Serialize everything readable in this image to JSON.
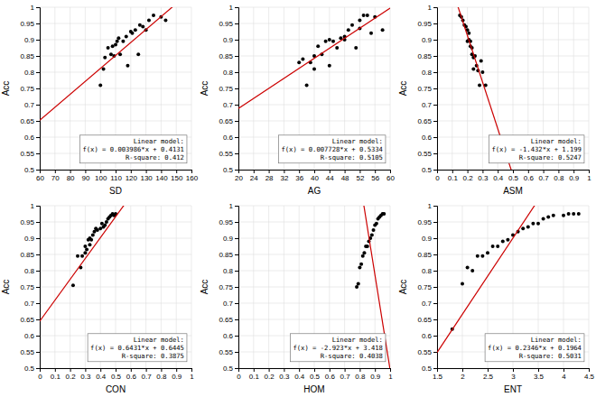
{
  "chart_data": [
    {
      "type": "scatter",
      "xlabel": "SD",
      "ylabel": "Acc",
      "xlim": [
        60,
        160
      ],
      "ylim": [
        0.5,
        1
      ],
      "xticks": [
        60,
        70,
        80,
        90,
        100,
        110,
        120,
        130,
        140,
        150,
        160
      ],
      "yticks": [
        0.5,
        0.55,
        0.6,
        0.65,
        0.7,
        0.75,
        0.8,
        0.85,
        0.9,
        0.95,
        1
      ],
      "grid": true,
      "series": [
        {
          "type": "scatter",
          "color": "#000000",
          "x": [
            100,
            102,
            103,
            105,
            107,
            108,
            109,
            110,
            111,
            112,
            113,
            115,
            117,
            118,
            120,
            121,
            123,
            125,
            126,
            128,
            130,
            132,
            135,
            140,
            143
          ],
          "values": [
            0.76,
            0.81,
            0.845,
            0.875,
            0.855,
            0.88,
            0.85,
            0.885,
            0.895,
            0.905,
            0.855,
            0.895,
            0.91,
            0.82,
            0.925,
            0.92,
            0.93,
            0.855,
            0.945,
            0.94,
            0.93,
            0.96,
            0.975,
            0.97,
            0.96
          ]
        },
        {
          "type": "line",
          "color": "#cc0000",
          "slope": 0.003986,
          "intercept": 0.4131
        }
      ],
      "annotations": [
        "Linear model:",
        "f(x) = 0.003986*x + 0.4131",
        "R-square: 0.412"
      ]
    },
    {
      "type": "scatter",
      "xlabel": "AG",
      "ylabel": "Acc",
      "xlim": [
        20,
        60
      ],
      "ylim": [
        0.5,
        1
      ],
      "xticks": [
        20,
        24,
        28,
        32,
        36,
        40,
        44,
        48,
        52,
        56,
        60
      ],
      "yticks": [
        0.5,
        0.55,
        0.6,
        0.65,
        0.7,
        0.75,
        0.8,
        0.85,
        0.9,
        0.95,
        1
      ],
      "grid": true,
      "series": [
        {
          "type": "scatter",
          "color": "#000000",
          "x": [
            36,
            37,
            38,
            39,
            40,
            40,
            41,
            42,
            43,
            44,
            44,
            45,
            46,
            47,
            48,
            48,
            49,
            50,
            51,
            52,
            52,
            53,
            54,
            55,
            56,
            58
          ],
          "values": [
            0.83,
            0.84,
            0.76,
            0.83,
            0.85,
            0.81,
            0.88,
            0.855,
            0.895,
            0.82,
            0.9,
            0.895,
            0.875,
            0.905,
            0.91,
            0.9,
            0.93,
            0.945,
            0.875,
            0.96,
            0.935,
            0.975,
            0.975,
            0.92,
            0.97,
            0.93
          ]
        },
        {
          "type": "line",
          "color": "#cc0000",
          "slope": 0.007728,
          "intercept": 0.5334
        }
      ],
      "annotations": [
        "Linear model:",
        "f(x) = 0.007728*x + 0.5334",
        "R-square: 0.5105"
      ]
    },
    {
      "type": "scatter",
      "xlabel": "ASM",
      "ylabel": "Acc",
      "xlim": [
        0,
        1
      ],
      "ylim": [
        0.5,
        1
      ],
      "xticks": [
        0,
        0.1,
        0.2,
        0.3,
        0.4,
        0.5,
        0.6,
        0.7,
        0.8,
        0.9,
        1
      ],
      "yticks": [
        0.5,
        0.55,
        0.6,
        0.65,
        0.7,
        0.75,
        0.8,
        0.85,
        0.9,
        0.95,
        1
      ],
      "grid": true,
      "series": [
        {
          "type": "scatter",
          "color": "#000000",
          "x": [
            0.15,
            0.16,
            0.17,
            0.18,
            0.19,
            0.2,
            0.2,
            0.21,
            0.21,
            0.22,
            0.22,
            0.23,
            0.23,
            0.24,
            0.24,
            0.25,
            0.26,
            0.27,
            0.28,
            0.29,
            0.3,
            0.32
          ],
          "values": [
            0.975,
            0.97,
            0.96,
            0.945,
            0.94,
            0.93,
            0.895,
            0.92,
            0.9,
            0.895,
            0.88,
            0.875,
            0.855,
            0.845,
            0.81,
            0.85,
            0.82,
            0.805,
            0.76,
            0.835,
            0.8,
            0.76
          ]
        },
        {
          "type": "line",
          "color": "#cc0000",
          "slope": -1.432,
          "intercept": 1.199
        }
      ],
      "annotations": [
        "Linear model:",
        "f(x) = -1.432*x + 1.199",
        "R-square: 0.5247"
      ]
    },
    {
      "type": "scatter",
      "xlabel": "CON",
      "ylabel": "Acc",
      "xlim": [
        0,
        1
      ],
      "ylim": [
        0.5,
        1
      ],
      "xticks": [
        0,
        0.1,
        0.2,
        0.3,
        0.4,
        0.5,
        0.6,
        0.7,
        0.8,
        0.9,
        1
      ],
      "yticks": [
        0.5,
        0.55,
        0.6,
        0.65,
        0.7,
        0.75,
        0.8,
        0.85,
        0.9,
        0.95,
        1
      ],
      "grid": true,
      "series": [
        {
          "type": "scatter",
          "color": "#000000",
          "x": [
            0.22,
            0.25,
            0.27,
            0.28,
            0.3,
            0.3,
            0.31,
            0.32,
            0.33,
            0.33,
            0.34,
            0.35,
            0.36,
            0.37,
            0.38,
            0.4,
            0.41,
            0.42,
            0.43,
            0.44,
            0.45,
            0.46,
            0.47,
            0.48,
            0.49,
            0.5
          ],
          "values": [
            0.755,
            0.845,
            0.81,
            0.845,
            0.855,
            0.875,
            0.865,
            0.895,
            0.88,
            0.9,
            0.895,
            0.91,
            0.92,
            0.93,
            0.925,
            0.93,
            0.945,
            0.935,
            0.94,
            0.95,
            0.96,
            0.965,
            0.97,
            0.975,
            0.97,
            0.975
          ]
        },
        {
          "type": "line",
          "color": "#cc0000",
          "slope": 0.6431,
          "intercept": 0.6445
        }
      ],
      "annotations": [
        "Linear model:",
        "f(x) = 0.6431*x + 0.6445",
        "R-square: 0.3875"
      ]
    },
    {
      "type": "scatter",
      "xlabel": "HOM",
      "ylabel": "Acc",
      "xlim": [
        0,
        1
      ],
      "ylim": [
        0.5,
        1
      ],
      "xticks": [
        0,
        0.1,
        0.2,
        0.3,
        0.4,
        0.5,
        0.6,
        0.7,
        0.8,
        0.9,
        1
      ],
      "yticks": [
        0.5,
        0.55,
        0.6,
        0.65,
        0.7,
        0.75,
        0.8,
        0.85,
        0.9,
        0.95,
        1
      ],
      "grid": true,
      "series": [
        {
          "type": "scatter",
          "color": "#000000",
          "x": [
            0.78,
            0.79,
            0.8,
            0.81,
            0.82,
            0.83,
            0.84,
            0.85,
            0.86,
            0.87,
            0.88,
            0.89,
            0.9,
            0.91,
            0.92,
            0.93,
            0.94,
            0.95,
            0.96
          ],
          "values": [
            0.75,
            0.76,
            0.81,
            0.82,
            0.845,
            0.855,
            0.875,
            0.875,
            0.89,
            0.9,
            0.91,
            0.925,
            0.94,
            0.945,
            0.96,
            0.965,
            0.97,
            0.975,
            0.975
          ]
        },
        {
          "type": "line",
          "color": "#cc0000",
          "slope": -2.923,
          "intercept": 3.418
        }
      ],
      "annotations": [
        "Linear model:",
        "f(x) = -2.923*x + 3.418",
        "R-square: 0.4038"
      ]
    },
    {
      "type": "scatter",
      "xlabel": "ENT",
      "ylabel": "Acc",
      "xlim": [
        1.5,
        4.5
      ],
      "ylim": [
        0.5,
        1
      ],
      "xticks": [
        1.5,
        2,
        2.5,
        3,
        3.5,
        4,
        4.5
      ],
      "yticks": [
        0.5,
        0.55,
        0.6,
        0.65,
        0.7,
        0.75,
        0.8,
        0.85,
        0.9,
        0.95,
        1
      ],
      "grid": true,
      "series": [
        {
          "type": "scatter",
          "color": "#000000",
          "x": [
            1.8,
            2.0,
            2.1,
            2.2,
            2.3,
            2.4,
            2.5,
            2.6,
            2.7,
            2.8,
            2.9,
            3.0,
            3.1,
            3.2,
            3.3,
            3.4,
            3.5,
            3.6,
            3.7,
            3.8,
            4.0,
            4.1,
            4.2,
            4.3
          ],
          "values": [
            0.62,
            0.76,
            0.81,
            0.8,
            0.845,
            0.845,
            0.855,
            0.875,
            0.875,
            0.89,
            0.895,
            0.91,
            0.92,
            0.93,
            0.935,
            0.945,
            0.945,
            0.96,
            0.965,
            0.97,
            0.97,
            0.975,
            0.975,
            0.975
          ]
        },
        {
          "type": "line",
          "color": "#cc0000",
          "slope": 0.2346,
          "intercept": 0.1964
        }
      ],
      "annotations": [
        "Linear model:",
        "f(x) = 0.2346*x + 0.1964",
        "R-square: 0.5031"
      ]
    }
  ]
}
